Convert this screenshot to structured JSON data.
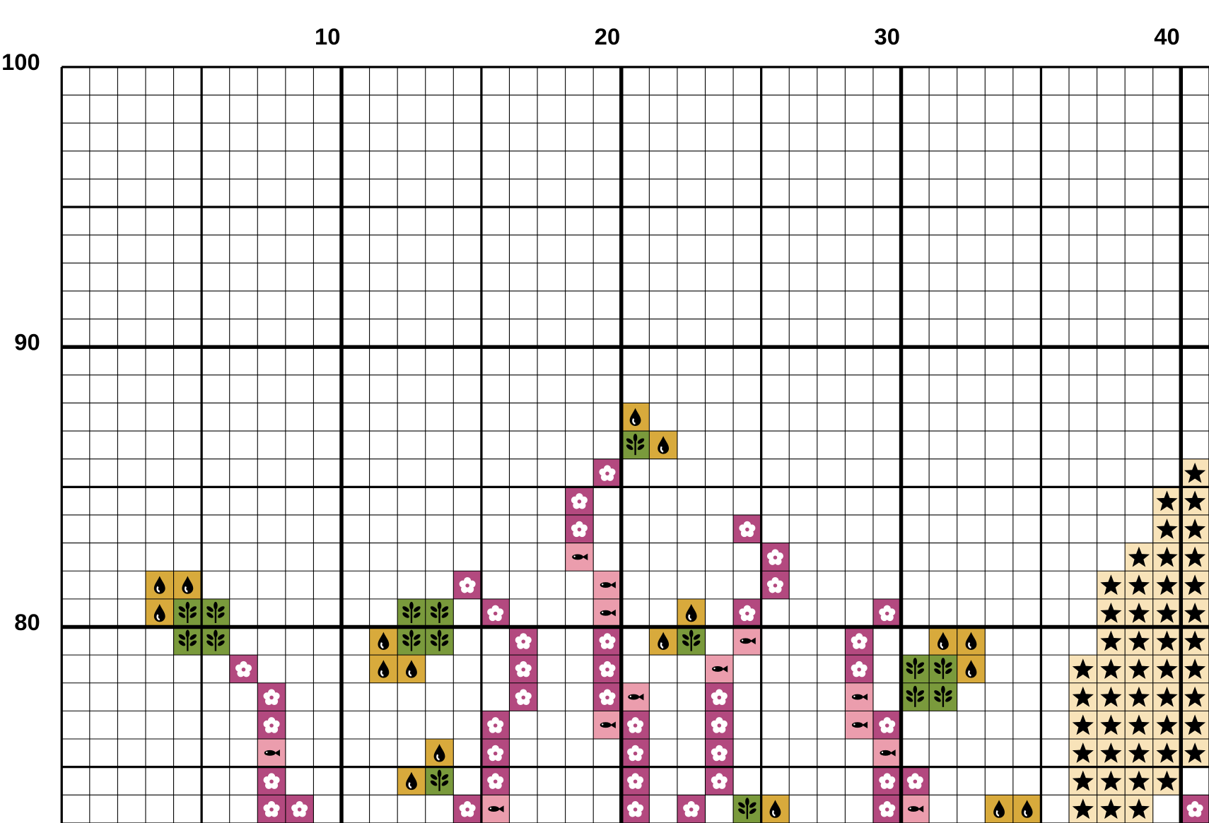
{
  "chart_data": {
    "type": "pattern",
    "xlim": [
      0,
      41
    ],
    "ylim": [
      73,
      100
    ],
    "xticks": [
      10,
      20,
      30,
      40
    ],
    "yticks": [
      100,
      90,
      80
    ],
    "symbols": [
      {
        "color": "#d8aa3c",
        "cells": [
          [
            21,
            88
          ],
          [
            22,
            87
          ],
          [
            4,
            82
          ],
          [
            5,
            82
          ],
          [
            4,
            81
          ],
          [
            23,
            81
          ],
          [
            12,
            80
          ],
          [
            22,
            80
          ],
          [
            32,
            80
          ],
          [
            33,
            80
          ],
          [
            12,
            79
          ],
          [
            13,
            79
          ],
          [
            33,
            79
          ],
          [
            14,
            76
          ],
          [
            13,
            75
          ],
          [
            26,
            74
          ],
          [
            34,
            74
          ],
          [
            35,
            74
          ]
        ]
      },
      {
        "color": "#7a9a3c",
        "cells": [
          [
            21,
            87
          ],
          [
            5,
            81
          ],
          [
            6,
            81
          ],
          [
            13,
            81
          ],
          [
            14,
            81
          ],
          [
            5,
            80
          ],
          [
            6,
            80
          ],
          [
            13,
            80
          ],
          [
            14,
            80
          ],
          [
            23,
            80
          ],
          [
            31,
            79
          ],
          [
            32,
            79
          ],
          [
            31,
            78
          ],
          [
            32,
            78
          ],
          [
            14,
            75
          ],
          [
            25,
            74
          ]
        ]
      },
      {
        "color": "#b3497f",
        "cells": [
          [
            20,
            86
          ],
          [
            19,
            85
          ],
          [
            19,
            84
          ],
          [
            25,
            84
          ],
          [
            26,
            83
          ],
          [
            15,
            82
          ],
          [
            26,
            82
          ],
          [
            16,
            81
          ],
          [
            25,
            81
          ],
          [
            30,
            81
          ],
          [
            17,
            80
          ],
          [
            20,
            80
          ],
          [
            29,
            80
          ],
          [
            7,
            79
          ],
          [
            17,
            79
          ],
          [
            20,
            79
          ],
          [
            29,
            79
          ],
          [
            8,
            78
          ],
          [
            17,
            78
          ],
          [
            20,
            78
          ],
          [
            24,
            78
          ],
          [
            8,
            77
          ],
          [
            16,
            77
          ],
          [
            21,
            77
          ],
          [
            24,
            77
          ],
          [
            30,
            77
          ],
          [
            16,
            76
          ],
          [
            21,
            76
          ],
          [
            24,
            76
          ],
          [
            8,
            75
          ],
          [
            16,
            75
          ],
          [
            21,
            75
          ],
          [
            24,
            75
          ],
          [
            30,
            75
          ],
          [
            31,
            75
          ],
          [
            8,
            74
          ],
          [
            9,
            74
          ],
          [
            15,
            74
          ],
          [
            21,
            74
          ],
          [
            23,
            74
          ],
          [
            30,
            74
          ],
          [
            41,
            74
          ]
        ]
      },
      {
        "color": "#eb9dad",
        "cells": [
          [
            19,
            83
          ],
          [
            20,
            82
          ],
          [
            20,
            81
          ],
          [
            25,
            80
          ],
          [
            24,
            79
          ],
          [
            21,
            78
          ],
          [
            29,
            78
          ],
          [
            20,
            77
          ],
          [
            29,
            77
          ],
          [
            8,
            76
          ],
          [
            30,
            76
          ],
          [
            16,
            74
          ],
          [
            31,
            74
          ]
        ]
      },
      {
        "color": "#f8e3b9",
        "cells": [
          [
            41,
            86
          ],
          [
            40,
            85
          ],
          [
            41,
            85
          ],
          [
            40,
            84
          ],
          [
            41,
            84
          ],
          [
            39,
            83
          ],
          [
            40,
            83
          ],
          [
            41,
            83
          ],
          [
            38,
            82
          ],
          [
            39,
            82
          ],
          [
            40,
            82
          ],
          [
            41,
            82
          ],
          [
            38,
            81
          ],
          [
            39,
            81
          ],
          [
            40,
            81
          ],
          [
            41,
            81
          ],
          [
            38,
            80
          ],
          [
            39,
            80
          ],
          [
            40,
            80
          ],
          [
            41,
            80
          ],
          [
            37,
            79
          ],
          [
            38,
            79
          ],
          [
            39,
            79
          ],
          [
            40,
            79
          ],
          [
            41,
            79
          ],
          [
            37,
            78
          ],
          [
            38,
            78
          ],
          [
            39,
            78
          ],
          [
            40,
            78
          ],
          [
            41,
            78
          ],
          [
            37,
            77
          ],
          [
            38,
            77
          ],
          [
            39,
            77
          ],
          [
            40,
            77
          ],
          [
            41,
            77
          ],
          [
            37,
            76
          ],
          [
            38,
            76
          ],
          [
            39,
            76
          ],
          [
            40,
            76
          ],
          [
            41,
            76
          ],
          [
            37,
            75
          ],
          [
            38,
            75
          ],
          [
            39,
            75
          ],
          [
            40,
            75
          ],
          [
            37,
            74
          ],
          [
            38,
            74
          ],
          [
            39,
            74
          ]
        ]
      }
    ]
  }
}
